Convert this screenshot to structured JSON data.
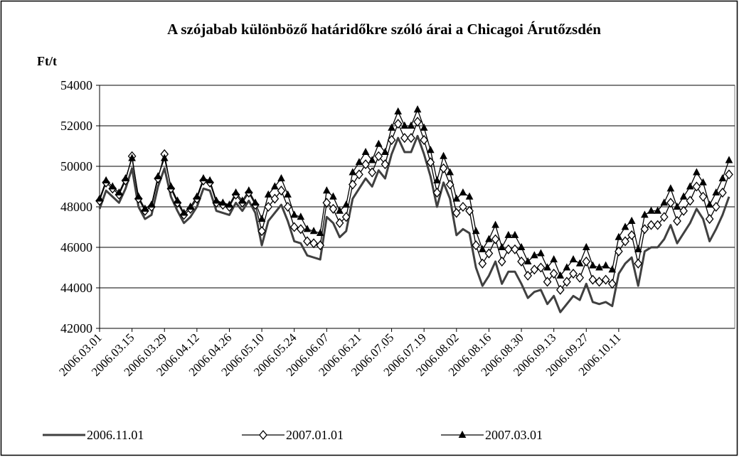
{
  "chart_data": {
    "type": "line",
    "title": "A szójabab különböző határidőkre szóló árai a Chicagoi Árutőzsdén",
    "y_label": "Ft/t",
    "categories": [
      "2006.03.01",
      null,
      null,
      null,
      null,
      "2006.03.15",
      null,
      null,
      null,
      null,
      "2006.03.29",
      null,
      null,
      null,
      null,
      "2006.04.12",
      null,
      null,
      null,
      null,
      "2006.04.26",
      null,
      null,
      null,
      null,
      "2006.05.10",
      null,
      null,
      null,
      null,
      "2006.05.24",
      null,
      null,
      null,
      null,
      "2006.06.07",
      null,
      null,
      null,
      null,
      "2006.06.21",
      null,
      null,
      null,
      null,
      "2006.07.05",
      null,
      null,
      null,
      null,
      "2006.07.19",
      null,
      null,
      null,
      null,
      "2006.08.02",
      null,
      null,
      null,
      null,
      "2006.08.16",
      null,
      null,
      null,
      null,
      "2006.08.30",
      null,
      null,
      null,
      null,
      "2006.09.13",
      null,
      null,
      null,
      null,
      "2006.09.27",
      null,
      null,
      null,
      null,
      "2006.10.11",
      null,
      null,
      null,
      null,
      null,
      null,
      null,
      null,
      null,
      null,
      null,
      null,
      null,
      null,
      null,
      null,
      null
    ],
    "series": [
      {
        "name": "2006.11.01",
        "color": "#404040",
        "marker": "none",
        "values": [
          47900,
          48800,
          48500,
          48200,
          48900,
          49900,
          48000,
          47400,
          47600,
          49000,
          49900,
          48500,
          47800,
          47200,
          47500,
          48000,
          48900,
          48800,
          47800,
          47700,
          47600,
          48200,
          47800,
          48300,
          47700,
          46100,
          47300,
          47700,
          48100,
          47300,
          46300,
          46200,
          45600,
          45500,
          45400,
          47500,
          47200,
          46500,
          46800,
          48400,
          48900,
          49400,
          49000,
          49800,
          49400,
          50600,
          51400,
          50700,
          50700,
          51500,
          50600,
          49500,
          48000,
          49200,
          48400,
          46600,
          46900,
          46700,
          45000,
          44100,
          44600,
          45300,
          44200,
          44800,
          44800,
          44200,
          43500,
          43800,
          43900,
          43200,
          43600,
          42800,
          43200,
          43600,
          43400,
          44200,
          43300,
          43200,
          43300,
          43100,
          44700,
          45200,
          45500,
          44100,
          45800,
          46000,
          46000,
          46400,
          47100,
          46200,
          46700,
          47200,
          47900,
          47400,
          46300,
          46900,
          47600,
          48500
        ]
      },
      {
        "name": "2007.01.01",
        "color": "#000000",
        "marker": "diamond",
        "values": [
          48300,
          49200,
          48900,
          48600,
          49300,
          50500,
          48400,
          47800,
          48000,
          49400,
          50600,
          48900,
          48200,
          47600,
          47900,
          48400,
          49300,
          49200,
          48200,
          48100,
          48000,
          48600,
          48200,
          48700,
          48100,
          46800,
          48000,
          48400,
          48800,
          48000,
          47000,
          46900,
          46300,
          46200,
          46100,
          48200,
          47900,
          47200,
          47500,
          49100,
          49600,
          50100,
          49700,
          50500,
          50100,
          51300,
          52100,
          51400,
          51400,
          52200,
          51300,
          50200,
          48700,
          49900,
          49100,
          47700,
          48000,
          47800,
          46100,
          45200,
          45700,
          46400,
          45300,
          45900,
          45900,
          45300,
          44600,
          44900,
          45000,
          44300,
          44700,
          43900,
          44300,
          44700,
          44500,
          45300,
          44400,
          44300,
          44400,
          44200,
          45800,
          46300,
          46600,
          45200,
          46900,
          47100,
          47100,
          47500,
          48200,
          47300,
          47800,
          48300,
          49000,
          48500,
          47400,
          48000,
          48700,
          49600
        ]
      },
      {
        "name": "2007.03.01",
        "color": "#000000",
        "marker": "triangle",
        "values": [
          48400,
          49300,
          49000,
          48700,
          49400,
          50400,
          48500,
          47900,
          48100,
          49500,
          50400,
          49000,
          48300,
          47700,
          48000,
          48500,
          49400,
          49300,
          48300,
          48200,
          48100,
          48700,
          48300,
          48800,
          48200,
          47400,
          48600,
          49000,
          49400,
          48600,
          47600,
          47500,
          46900,
          46800,
          46700,
          48800,
          48500,
          47800,
          48100,
          49700,
          50200,
          50700,
          50300,
          51100,
          50700,
          51900,
          52700,
          52000,
          52000,
          52800,
          51900,
          50800,
          49300,
          50500,
          49700,
          48400,
          48700,
          48500,
          46800,
          45900,
          46400,
          47100,
          46000,
          46600,
          46600,
          46000,
          45300,
          45600,
          45700,
          45000,
          45400,
          44600,
          45000,
          45400,
          45200,
          46000,
          45100,
          45000,
          45100,
          44900,
          46500,
          47000,
          47300,
          45900,
          47600,
          47800,
          47800,
          48200,
          48900,
          48000,
          48500,
          49000,
          49700,
          49200,
          48100,
          48700,
          49400,
          50300
        ]
      }
    ],
    "ylim": [
      42000,
      54000
    ],
    "yticks": [
      42000,
      44000,
      46000,
      48000,
      50000,
      52000,
      54000
    ],
    "grid": true,
    "legend": "bottom"
  }
}
